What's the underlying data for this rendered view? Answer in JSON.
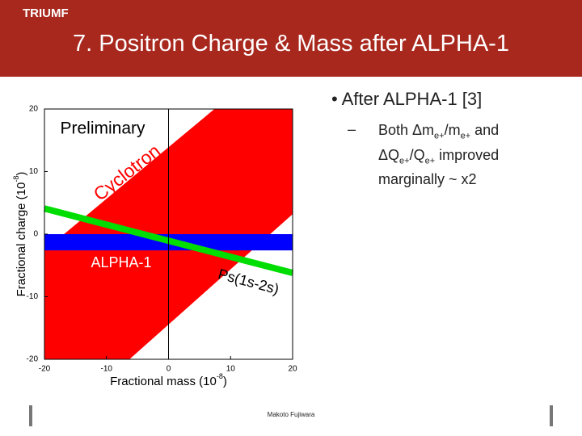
{
  "slide": {
    "logo": "TRIUMF",
    "title": "7. Positron Charge & Mass after ALPHA-1",
    "bullet_marker": "•",
    "bullet": "After ALPHA-1 [3]",
    "sub_marker": "–",
    "sub_bullet": [
      "Both Δm",
      "e+",
      "/m",
      "e+",
      " and ΔQ",
      "e+",
      "/Q",
      "e+",
      " improved marginally ~ x2"
    ],
    "footer": "Makoto Fujiwara"
  },
  "chart_data": {
    "type": "region",
    "annotation": "Preliminary",
    "x_label": [
      "Fractional mass (10",
      "-8",
      ")"
    ],
    "y_label": [
      "Fractional charge (10",
      "-8",
      ")"
    ],
    "xlim": [
      -20,
      20
    ],
    "ylim": [
      -20,
      20
    ],
    "xticks": [
      -20,
      -10,
      0,
      10,
      20
    ],
    "yticks": [
      -20,
      -10,
      0,
      10,
      20
    ],
    "series": [
      {
        "name": "Cyclotron",
        "color": "#ff0000",
        "x": [
          -20,
          7.4,
          20,
          20,
          -6.3,
          -20
        ],
        "y": [
          -2.6,
          20,
          20,
          3.2,
          -20,
          -20
        ]
      },
      {
        "name": "ALPHA-1",
        "color": "#0000ff",
        "x": [
          -20,
          20,
          20,
          -20
        ],
        "y": [
          0,
          0,
          -2.6,
          -2.6
        ]
      },
      {
        "name": "Ps(1s-2s)",
        "color": "#00dd00",
        "x": [
          -20,
          20
        ],
        "y": [
          4.1,
          -6.2
        ]
      }
    ]
  }
}
